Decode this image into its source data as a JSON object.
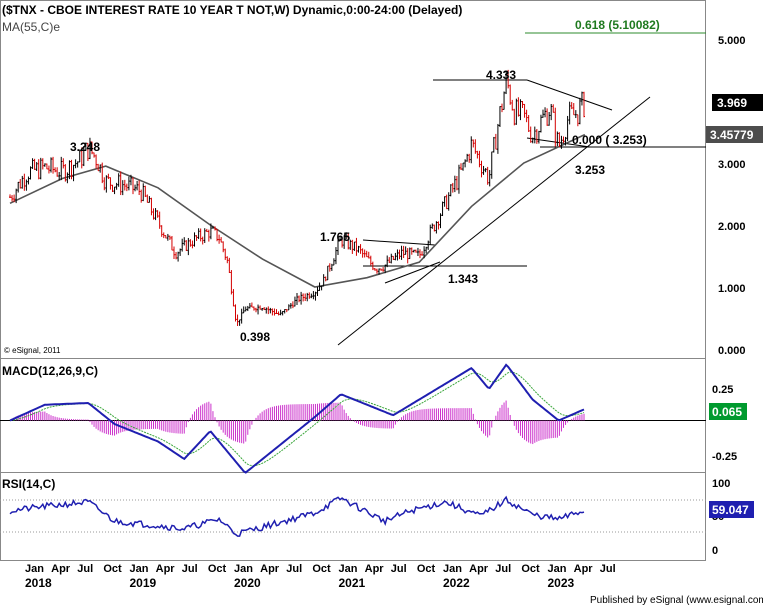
{
  "header": {
    "title": "($TNX - CBOE INTEREST RATE 10 YEAR T NOT,W) Dynamic,0:00-24:00 (Delayed)",
    "ma_label": "MA(55,C)e"
  },
  "copyright": "© eSignal, 2011",
  "footer": "Published by eSignal (www.esignal.com)",
  "colors": {
    "up_bar": "#000000",
    "down_bar": "#d40000",
    "ma": "#555555",
    "macd_line": "#1f1fb0",
    "signal_line": "#3aa63a",
    "histogram": "#cc33cc",
    "rsi_line": "#1f1fb0",
    "fib_line": "#2e8b2e",
    "last_price_bg": "#000000",
    "ma_tag_bg": "#4d4d4d",
    "macd_tag_bg": "#009a2e",
    "rsi_tag_bg": "#1f1fb0"
  },
  "chart_data": [
    {
      "type": "ohlc",
      "panel": "price",
      "x_axis": {
        "months": [
          "Jan",
          "Apr",
          "Jul",
          "Oct",
          "Jan",
          "Apr",
          "Jul",
          "Oct",
          "Jan",
          "Apr",
          "Jul",
          "Oct",
          "Jan",
          "Apr",
          "Jul",
          "Oct",
          "Jan",
          "Apr",
          "Jul",
          "Oct",
          "Jan",
          "Apr",
          "Jul"
        ],
        "years": [
          "2018",
          "2019",
          "2020",
          "2021",
          "2022",
          "2023"
        ]
      },
      "y_ticks": [
        "5.000",
        "4.000",
        "3.000",
        "2.000",
        "1.000",
        "0.000"
      ],
      "ylim": [
        0,
        5.4
      ],
      "series_close": [
        {
          "x": "2018-01",
          "y": 2.45
        },
        {
          "x": "2018-03",
          "y": 2.85
        },
        {
          "x": "2018-05",
          "y": 2.93
        },
        {
          "x": "2018-07",
          "y": 2.86
        },
        {
          "x": "2018-09",
          "y": 3.05
        },
        {
          "x": "2018-10",
          "y": 3.248
        },
        {
          "x": "2018-11",
          "y": 3.05
        },
        {
          "x": "2018-12",
          "y": 2.7
        },
        {
          "x": "2019-02",
          "y": 2.65
        },
        {
          "x": "2019-04",
          "y": 2.55
        },
        {
          "x": "2019-06",
          "y": 2.05
        },
        {
          "x": "2019-08",
          "y": 1.55
        },
        {
          "x": "2019-10",
          "y": 1.75
        },
        {
          "x": "2019-12",
          "y": 1.9
        },
        {
          "x": "2020-01",
          "y": 1.8
        },
        {
          "x": "2020-02",
          "y": 1.4
        },
        {
          "x": "2020-03",
          "y": 0.398
        },
        {
          "x": "2020-04",
          "y": 0.65
        },
        {
          "x": "2020-06",
          "y": 0.68
        },
        {
          "x": "2020-08",
          "y": 0.55
        },
        {
          "x": "2020-10",
          "y": 0.8
        },
        {
          "x": "2020-12",
          "y": 0.92
        },
        {
          "x": "2021-01",
          "y": 1.1
        },
        {
          "x": "2021-03",
          "y": 1.765
        },
        {
          "x": "2021-05",
          "y": 1.6
        },
        {
          "x": "2021-07",
          "y": 1.3
        },
        {
          "x": "2021-08",
          "y": 1.343
        },
        {
          "x": "2021-10",
          "y": 1.55
        },
        {
          "x": "2021-12",
          "y": 1.5
        },
        {
          "x": "2022-01",
          "y": 1.8
        },
        {
          "x": "2022-03",
          "y": 2.35
        },
        {
          "x": "2022-05",
          "y": 2.9
        },
        {
          "x": "2022-06",
          "y": 3.3
        },
        {
          "x": "2022-08",
          "y": 2.75
        },
        {
          "x": "2022-09",
          "y": 3.6
        },
        {
          "x": "2022-10",
          "y": 4.333
        },
        {
          "x": "2022-11",
          "y": 3.8
        },
        {
          "x": "2022-12",
          "y": 3.75
        },
        {
          "x": "2023-01",
          "y": 3.45
        },
        {
          "x": "2023-03",
          "y": 3.9
        },
        {
          "x": "2023-04",
          "y": 3.253
        },
        {
          "x": "2023-05",
          "y": 3.7
        },
        {
          "x": "2023-06",
          "y": 3.8
        },
        {
          "x": "2023-07",
          "y": 3.969
        }
      ],
      "ma_55": [
        {
          "x": "2018-01",
          "y": 2.35
        },
        {
          "x": "2018-07",
          "y": 2.75
        },
        {
          "x": "2018-12",
          "y": 2.95
        },
        {
          "x": "2019-06",
          "y": 2.6
        },
        {
          "x": "2019-12",
          "y": 2.0
        },
        {
          "x": "2020-06",
          "y": 1.45
        },
        {
          "x": "2020-12",
          "y": 1.0
        },
        {
          "x": "2021-06",
          "y": 1.15
        },
        {
          "x": "2021-12",
          "y": 1.4
        },
        {
          "x": "2022-06",
          "y": 2.3
        },
        {
          "x": "2022-12",
          "y": 3.0
        },
        {
          "x": "2023-07",
          "y": 3.45779
        }
      ],
      "annotations": [
        {
          "label": "3.248",
          "value": 3.248
        },
        {
          "label": "0.398",
          "value": 0.398
        },
        {
          "label": "1.765",
          "value": 1.765
        },
        {
          "label": "1.343",
          "value": 1.343
        },
        {
          "label": "4.333",
          "value": 4.333
        },
        {
          "label": "3.253",
          "value": 3.253
        },
        {
          "label": "0.000 ( 3.253)",
          "value": 3.253
        },
        {
          "label": "0.618 (5.10082)",
          "value": 5.10082
        }
      ],
      "tags": {
        "last_price": "3.969",
        "ma_value": "3.45779"
      }
    },
    {
      "type": "line",
      "panel": "macd",
      "label": "MACD(12,26,9,C)",
      "y_ticks": [
        "0.25",
        "-0.25"
      ],
      "ylim": [
        -0.33,
        0.33
      ],
      "current": "0.065",
      "macd": [
        {
          "x": "2018-01",
          "y": 0.0
        },
        {
          "x": "2018-05",
          "y": 0.09
        },
        {
          "x": "2018-10",
          "y": 0.1
        },
        {
          "x": "2019-01",
          "y": -0.02
        },
        {
          "x": "2019-06",
          "y": -0.12
        },
        {
          "x": "2019-09",
          "y": -0.22
        },
        {
          "x": "2019-12",
          "y": -0.06
        },
        {
          "x": "2020-04",
          "y": -0.3
        },
        {
          "x": "2020-09",
          "y": -0.1
        },
        {
          "x": "2020-12",
          "y": 0.02
        },
        {
          "x": "2021-03",
          "y": 0.15
        },
        {
          "x": "2021-09",
          "y": 0.03
        },
        {
          "x": "2022-01",
          "y": 0.15
        },
        {
          "x": "2022-06",
          "y": 0.3
        },
        {
          "x": "2022-08",
          "y": 0.18
        },
        {
          "x": "2022-10",
          "y": 0.32
        },
        {
          "x": "2023-01",
          "y": 0.12
        },
        {
          "x": "2023-04",
          "y": 0.0
        },
        {
          "x": "2023-07",
          "y": 0.065
        }
      ]
    },
    {
      "type": "line",
      "panel": "rsi",
      "label": "RSI(14,C)",
      "y_ticks": [
        "100",
        "50",
        "0"
      ],
      "ylim": [
        0,
        100
      ],
      "current": "59.047",
      "rsi": [
        {
          "x": "2018-01",
          "y": 58
        },
        {
          "x": "2018-05",
          "y": 65
        },
        {
          "x": "2018-10",
          "y": 72
        },
        {
          "x": "2019-01",
          "y": 42
        },
        {
          "x": "2019-06",
          "y": 35
        },
        {
          "x": "2019-09",
          "y": 30
        },
        {
          "x": "2020-01",
          "y": 45
        },
        {
          "x": "2020-03",
          "y": 22
        },
        {
          "x": "2020-08",
          "y": 40
        },
        {
          "x": "2020-12",
          "y": 55
        },
        {
          "x": "2021-03",
          "y": 78
        },
        {
          "x": "2021-08",
          "y": 42
        },
        {
          "x": "2021-11",
          "y": 58
        },
        {
          "x": "2022-03",
          "y": 72
        },
        {
          "x": "2022-07",
          "y": 50
        },
        {
          "x": "2022-10",
          "y": 75
        },
        {
          "x": "2023-01",
          "y": 52
        },
        {
          "x": "2023-04",
          "y": 45
        },
        {
          "x": "2023-07",
          "y": 59
        }
      ]
    }
  ]
}
